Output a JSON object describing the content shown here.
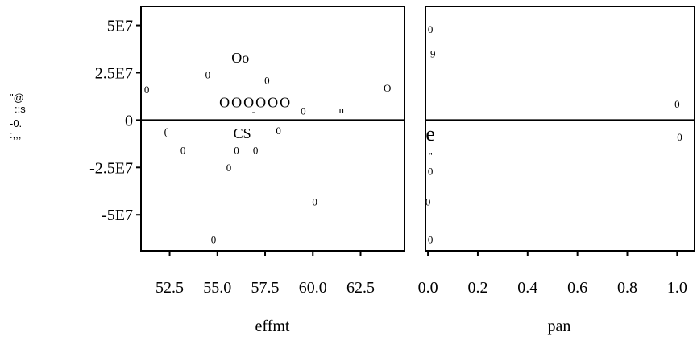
{
  "chart_data": [
    {
      "type": "scatter",
      "xlabel": "effmt",
      "ylabel": "",
      "xlim": [
        51.0,
        64.8
      ],
      "ylim": [
        -69000000.0,
        60000000.0
      ],
      "x_ticks": [
        52.5,
        55.0,
        57.5,
        60.0,
        62.5
      ],
      "x_tick_labels": [
        "52.5",
        "55.0",
        "57.5",
        "60.0",
        "62.5"
      ],
      "y_ticks": [
        50000000.0,
        25000000.0,
        0,
        -25000000.0,
        -50000000.0
      ],
      "y_tick_labels": [
        "5E7",
        "2.5E7",
        "0",
        "-2.5E7",
        "-5E7"
      ],
      "reference_line_y": 0,
      "points": [
        {
          "x": 56.2,
          "y": 33000000.0,
          "label": "Oo"
        },
        {
          "x": 54.5,
          "y": 24000000.0,
          "label": "0"
        },
        {
          "x": 57.6,
          "y": 21000000.0,
          "label": "0"
        },
        {
          "x": 51.3,
          "y": 16000000.0,
          "label": "0"
        },
        {
          "x": 63.9,
          "y": 17000000.0,
          "label": "O"
        },
        {
          "x": 57.0,
          "y": 9500000.0,
          "label": "OOOOOO"
        },
        {
          "x": 59.5,
          "y": 4900000.0,
          "label": "0"
        },
        {
          "x": 61.5,
          "y": 5400000.0,
          "label": "n"
        },
        {
          "x": 56.9,
          "y": 4600000.0,
          "label": "-"
        },
        {
          "x": 52.3,
          "y": -6000000.0,
          "label": "("
        },
        {
          "x": 56.3,
          "y": -7000000.0,
          "label": "CS"
        },
        {
          "x": 58.2,
          "y": -5500000.0,
          "label": "0"
        },
        {
          "x": 53.2,
          "y": -16000000.0,
          "label": "0"
        },
        {
          "x": 56.0,
          "y": -16000000.0,
          "label": "0"
        },
        {
          "x": 57.0,
          "y": -16000000.0,
          "label": "0"
        },
        {
          "x": 55.6,
          "y": -25000000.0,
          "label": "0"
        },
        {
          "x": 60.1,
          "y": -43000000.0,
          "label": "0"
        },
        {
          "x": 54.8,
          "y": -63000000.0,
          "label": "0"
        }
      ]
    },
    {
      "type": "scatter",
      "xlabel": "pan",
      "ylabel": "",
      "xlim": [
        -0.01,
        1.07
      ],
      "ylim": [
        -69000000.0,
        60000000.0
      ],
      "x_ticks": [
        0.0,
        0.2,
        0.4,
        0.6,
        0.8,
        1.0
      ],
      "x_tick_labels": [
        "0.0",
        "0.2",
        "0.4",
        "0.6",
        "0.8",
        "1.0"
      ],
      "reference_line_y": 0,
      "points": [
        {
          "x": 0.01,
          "y": 48000000.0,
          "label": "0"
        },
        {
          "x": 0.02,
          "y": 35000000.0,
          "label": "9"
        },
        {
          "x": 1.0,
          "y": 8500000.0,
          "label": "0"
        },
        {
          "x": 0.01,
          "y": -7000000.0,
          "label": "e"
        },
        {
          "x": 1.01,
          "y": -9000000.0,
          "label": "0"
        },
        {
          "x": 0.01,
          "y": -19000000.0,
          "label": "\""
        },
        {
          "x": 0.01,
          "y": -27000000.0,
          "label": "0"
        },
        {
          "x": 0.0,
          "y": -43000000.0,
          "label": "0"
        },
        {
          "x": 0.01,
          "y": -63000000.0,
          "label": "0"
        }
      ]
    }
  ],
  "side_glyphs": [
    "\"@",
    "::s",
    "-0.",
    ":,,,"
  ]
}
